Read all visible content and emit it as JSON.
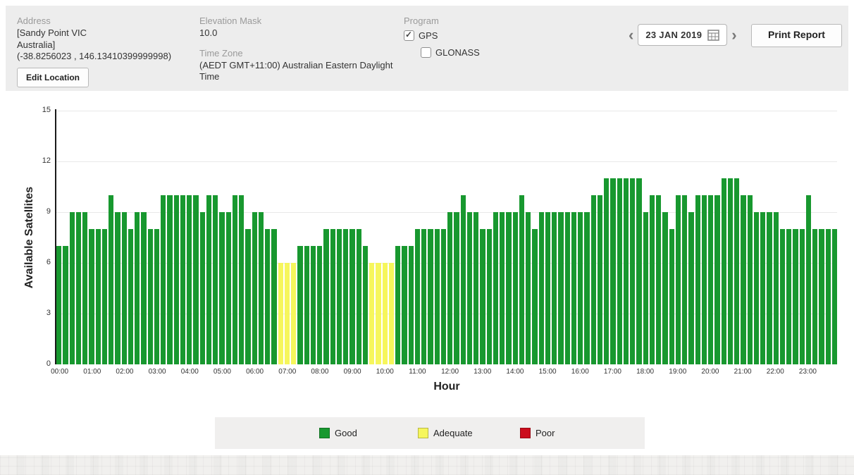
{
  "header": {
    "address_label": "Address",
    "address_line1": "[Sandy Point VIC",
    "address_line2": "Australia]",
    "coordinates": "(-38.8256023 , 146.13410399999998)",
    "edit_location_label": "Edit Location",
    "elevation_mask_label": "Elevation Mask",
    "elevation_mask_value": "10.0",
    "time_zone_label": "Time Zone",
    "time_zone_value": "(AEDT GMT+11:00) Australian Eastern Daylight Time",
    "program_label": "Program",
    "gps_label": "GPS",
    "gps_checked": true,
    "glonass_label": "GLONASS",
    "glonass_checked": false,
    "prev_icon": "‹",
    "next_icon": "›",
    "date_value": "23 JAN 2019",
    "print_report_label": "Print Report"
  },
  "chart_data": {
    "type": "bar",
    "title": "",
    "xlabel": "Hour",
    "ylabel": "Available Satellites",
    "ylim": [
      0,
      15
    ],
    "yticks": [
      0,
      3,
      6,
      9,
      12,
      15
    ],
    "x_tick_labels": [
      "00:00",
      "01:00",
      "02:00",
      "03:00",
      "04:00",
      "05:00",
      "06:00",
      "07:00",
      "08:00",
      "09:00",
      "10:00",
      "11:00",
      "12:00",
      "13:00",
      "14:00",
      "15:00",
      "16:00",
      "17:00",
      "18:00",
      "19:00",
      "20:00",
      "21:00",
      "22:00",
      "23:00"
    ],
    "bars_per_hour": 5,
    "interval_minutes": 12,
    "grid": true,
    "values": [
      7,
      7,
      9,
      9,
      9,
      8,
      8,
      8,
      10,
      9,
      9,
      8,
      9,
      9,
      8,
      8,
      10,
      10,
      10,
      10,
      10,
      10,
      9,
      10,
      10,
      9,
      9,
      10,
      10,
      8,
      9,
      9,
      8,
      8,
      6,
      6,
      6,
      7,
      7,
      7,
      7,
      8,
      8,
      8,
      8,
      8,
      8,
      7,
      6,
      6,
      6,
      6,
      7,
      7,
      7,
      8,
      8,
      8,
      8,
      8,
      9,
      9,
      10,
      9,
      9,
      8,
      8,
      9,
      9,
      9,
      9,
      10,
      9,
      8,
      9,
      9,
      9,
      9,
      9,
      9,
      9,
      9,
      10,
      10,
      11,
      11,
      11,
      11,
      11,
      11,
      9,
      10,
      10,
      9,
      8,
      10,
      10,
      9,
      10,
      10,
      10,
      10,
      11,
      11,
      11,
      10,
      10,
      9,
      9,
      9,
      9,
      8,
      8,
      8,
      8,
      10,
      8,
      8,
      8,
      8
    ],
    "colors": {
      "good": "#18982f",
      "adequate": "#f6f65c",
      "poor": "#cb0d1d"
    },
    "thresholds": {
      "poor_max": 4,
      "adequate_max": 6
    }
  },
  "legend": {
    "items": [
      {
        "label": "Good",
        "color": "#18982f"
      },
      {
        "label": "Adequate",
        "color": "#f6f65c"
      },
      {
        "label": "Poor",
        "color": "#cb0d1d"
      }
    ]
  }
}
